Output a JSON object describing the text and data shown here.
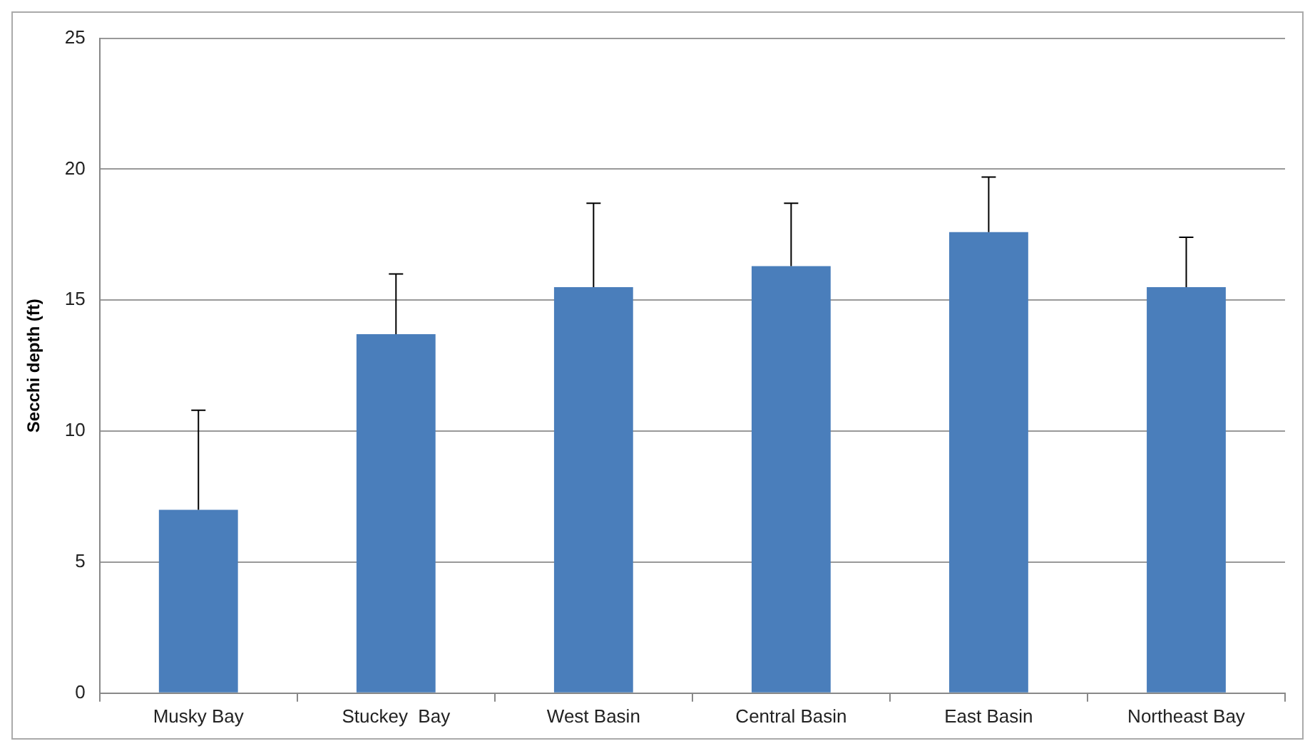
{
  "chart_data": {
    "type": "bar",
    "ylabel": "Secchi depth (ft)",
    "categories": [
      "Musky Bay",
      "Stuckey  Bay",
      "West Basin",
      "Central Basin",
      "East Basin",
      "Northeast Bay"
    ],
    "values": [
      7.0,
      13.7,
      15.5,
      16.3,
      17.6,
      15.5
    ],
    "errors": [
      [
        7.0,
        10.8
      ],
      [
        13.7,
        16.0
      ],
      [
        15.5,
        18.7
      ],
      [
        16.3,
        18.7
      ],
      [
        17.6,
        19.7
      ],
      [
        15.5,
        17.4
      ]
    ],
    "color": "#4a7ebb",
    "ylim": [
      0,
      25
    ],
    "yticks": [
      0,
      5,
      10,
      15,
      20,
      25
    ],
    "grid": "y",
    "legend": false
  }
}
